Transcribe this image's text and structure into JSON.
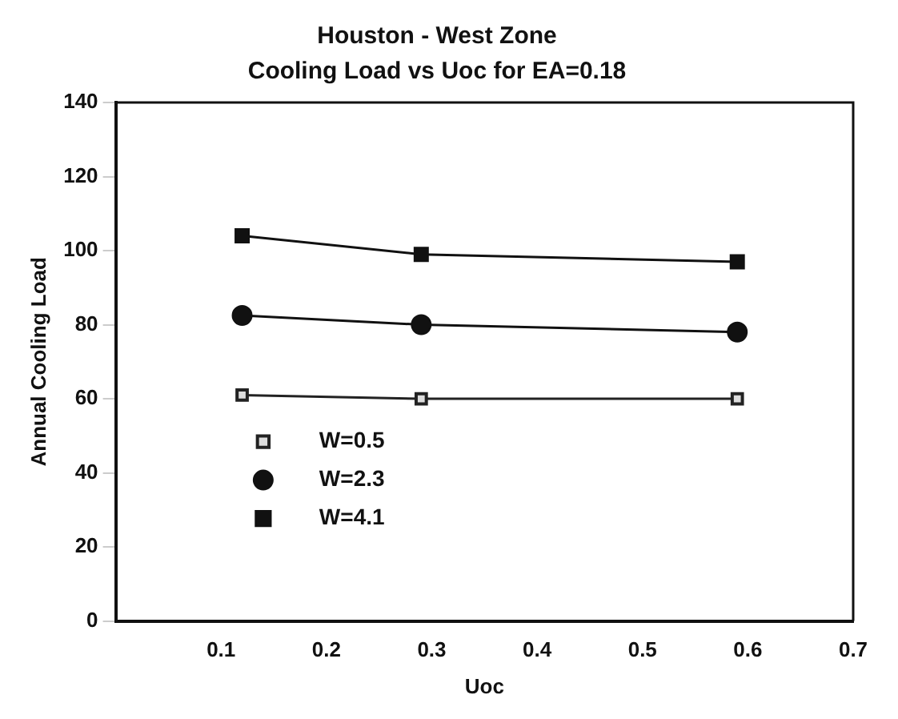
{
  "chart_data": {
    "type": "line",
    "title": "Houston - West Zone",
    "subtitle": "Cooling Load vs Uoc for EA=0.18",
    "xlabel": "Uoc",
    "ylabel": "Annual Cooling Load",
    "xlim": [
      0,
      0.7
    ],
    "xticks": [
      {
        "value": 0,
        "label": null
      },
      0.1,
      0.2,
      0.3,
      0.4,
      0.5,
      0.6,
      0.7
    ],
    "ylim": [
      0,
      140
    ],
    "yticks": [
      0,
      20,
      40,
      60,
      80,
      100,
      120,
      140
    ],
    "grid": false,
    "legend": "bottom left",
    "line_style": "solid",
    "series": [
      {
        "name": "W=0.5",
        "color": "#222222",
        "marker": "square",
        "x": [
          0.12,
          0.29,
          0.59
        ],
        "values": [
          61,
          60,
          60
        ]
      },
      {
        "name": "W=2.3",
        "color": "#111111",
        "marker": "circle",
        "x": [
          0.12,
          0.29,
          0.59
        ],
        "values": [
          82.5,
          80,
          78
        ]
      },
      {
        "name": "W=4.1",
        "color": "#111111",
        "marker": "square",
        "x": [
          0.12,
          0.29,
          0.59
        ],
        "values": [
          104,
          99,
          97
        ]
      }
    ]
  }
}
